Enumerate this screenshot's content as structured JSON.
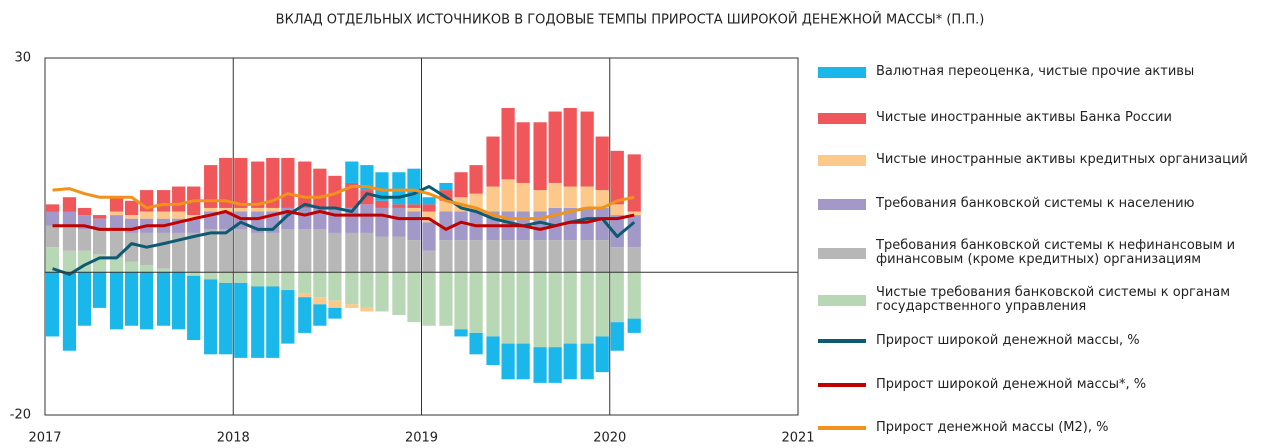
{
  "chart_data": {
    "type": "bar",
    "title": "ВКЛАД ОТДЕЛЬНЫХ ИСТОЧНИКОВ В ГОДОВЫЕ ТЕМПЫ ПРИРОСТА ШИРОКОЙ ДЕНЕЖНОЙ МАССЫ* (П.П.)",
    "x": [
      2017.04,
      2017.13,
      2017.21,
      2017.29,
      2017.38,
      2017.46,
      2017.54,
      2017.63,
      2017.71,
      2017.79,
      2017.88,
      2017.96,
      2018.04,
      2018.13,
      2018.21,
      2018.29,
      2018.38,
      2018.46,
      2018.54,
      2018.63,
      2018.71,
      2018.79,
      2018.88,
      2018.96,
      2019.04,
      2019.13,
      2019.21,
      2019.29,
      2019.38,
      2019.46,
      2019.54,
      2019.63,
      2019.71,
      2019.79,
      2019.88,
      2019.96,
      2020.04,
      2020.13
    ],
    "xlim": [
      2017,
      2021
    ],
    "xticks": [
      2017,
      2018,
      2019,
      2020,
      2021
    ],
    "ylim": [
      -20,
      30
    ],
    "yticks": [
      -20,
      30
    ],
    "series": [
      {
        "name": "Валютная переоценка, чистые прочие активы",
        "color": "#1ab7ea",
        "kind": "bar",
        "values": [
          -9,
          -11,
          -7.5,
          -5,
          -8,
          -7.5,
          -8,
          -7.5,
          -8,
          -9,
          -10.5,
          -10,
          -10.5,
          -10,
          -10,
          -7.5,
          -5,
          -3,
          -1.5,
          3,
          3.5,
          4,
          4.5,
          5,
          1,
          1,
          -1,
          -3,
          -4,
          -5,
          -5,
          -5,
          -5,
          -5,
          -5,
          -5,
          -4,
          -2
        ]
      },
      {
        "name": "Чистые иностранные активы Банка России",
        "color": "#f0575a",
        "kind": "bar",
        "values": [
          1,
          2,
          1,
          0.5,
          2,
          2,
          3,
          3,
          3.5,
          4,
          6,
          7,
          7,
          6.5,
          7,
          7,
          6.5,
          5.5,
          4.5,
          3.5,
          2,
          1,
          0.5,
          0.5,
          1,
          1.5,
          3.5,
          4,
          7,
          10,
          8.5,
          9.5,
          10,
          11,
          10.5,
          7.5,
          7.5,
          8
        ]
      },
      {
        "name": "Чистые иностранные активы кредитных организаций",
        "color": "#fcc98a",
        "kind": "bar",
        "values": [
          0,
          0,
          0,
          0,
          0.5,
          0.5,
          1,
          1,
          1,
          0.5,
          0.5,
          0.5,
          0.5,
          0.5,
          0.5,
          0,
          -0.5,
          -1,
          -1,
          -0.5,
          -0.5,
          0,
          0,
          0.5,
          1.5,
          1.5,
          2,
          2.5,
          3.5,
          4.5,
          4,
          3,
          3.5,
          3,
          3,
          2.5,
          1.5,
          0.5
        ]
      },
      {
        "name": "Требования банковской системы к населению",
        "color": "#a299c8",
        "kind": "bar",
        "values": [
          2,
          2,
          2,
          1.5,
          2,
          2,
          2,
          2,
          2,
          2,
          2.5,
          2.5,
          2.5,
          3,
          3,
          3,
          3,
          3,
          3.5,
          3.5,
          4,
          4,
          4,
          4,
          4,
          4,
          4,
          4,
          4,
          4,
          4,
          4,
          4.5,
          4.5,
          4.5,
          4.5,
          4.5,
          4.5
        ]
      },
      {
        "name": "Требования банковской системы к нефинансовым и финансовым (кроме кредитных) организациям",
        "color": "#b7b7b7",
        "kind": "bar",
        "values": [
          3,
          3.5,
          3,
          3.5,
          4,
          4,
          4.5,
          5,
          5.5,
          5.5,
          6,
          6,
          6,
          5.5,
          5.5,
          6,
          6,
          6,
          5.5,
          5.5,
          5.5,
          5,
          5,
          4.5,
          3,
          4.5,
          4.5,
          4.5,
          4.5,
          4.5,
          4.5,
          4.5,
          4.5,
          4.5,
          4.5,
          4.5,
          3.5,
          3.5
        ]
      },
      {
        "name": "Чистые требования банковской системы к органам государственного управления",
        "color": "#b8d8b5",
        "kind": "bar",
        "values": [
          3.5,
          3,
          3,
          2.5,
          2,
          1.5,
          1,
          0.5,
          0,
          -0.5,
          -1,
          -1.5,
          -1.5,
          -2,
          -2,
          -2.5,
          -3,
          -3.5,
          -4,
          -4.5,
          -5,
          -5.5,
          -6,
          -7,
          -7.5,
          -7.5,
          -8,
          -8.5,
          -9,
          -10,
          -10,
          -10.5,
          -10.5,
          -10,
          -10,
          -9,
          -7,
          -6.5
        ]
      },
      {
        "name": "Прирост широкой денежной массы, %",
        "color": "#0e5a73",
        "kind": "line",
        "values": [
          0.5,
          -0.3,
          1,
          2,
          2,
          4,
          3.5,
          4,
          4.5,
          5,
          5.5,
          5.5,
          7,
          6,
          6,
          8,
          9.5,
          9,
          9,
          8.5,
          11,
          10.5,
          10.5,
          11,
          12,
          10.5,
          9,
          8.5,
          7.5,
          7,
          6.5,
          7,
          6.5,
          7,
          7.5,
          7.5,
          5,
          7
        ]
      },
      {
        "name": "Прирост широкой денежной массы*, %",
        "color": "#c00000",
        "kind": "line",
        "values": [
          6.5,
          6.5,
          6.5,
          6,
          6,
          6,
          6.5,
          6.5,
          7,
          7.5,
          8,
          8.5,
          7.5,
          7.5,
          8,
          8.5,
          8,
          8.5,
          8,
          8,
          8,
          8,
          7.5,
          7.5,
          7.5,
          6,
          7,
          6.5,
          6.5,
          6.5,
          6.5,
          6,
          6.5,
          7,
          7,
          7.5,
          7.5,
          8
        ]
      },
      {
        "name": "Прирост денежной массы (М2), %",
        "color": "#f0921b",
        "kind": "line",
        "values": [
          11.5,
          11.7,
          11,
          10.5,
          10.5,
          10.5,
          9,
          9.5,
          9.5,
          10,
          10,
          10,
          9.5,
          9.5,
          10,
          11,
          10.5,
          10.5,
          11,
          12,
          12,
          11.5,
          11.5,
          11.5,
          11,
          10,
          9.5,
          9,
          8,
          7.5,
          7.5,
          7.5,
          8,
          8.5,
          9,
          9,
          10,
          10.5
        ]
      }
    ]
  }
}
